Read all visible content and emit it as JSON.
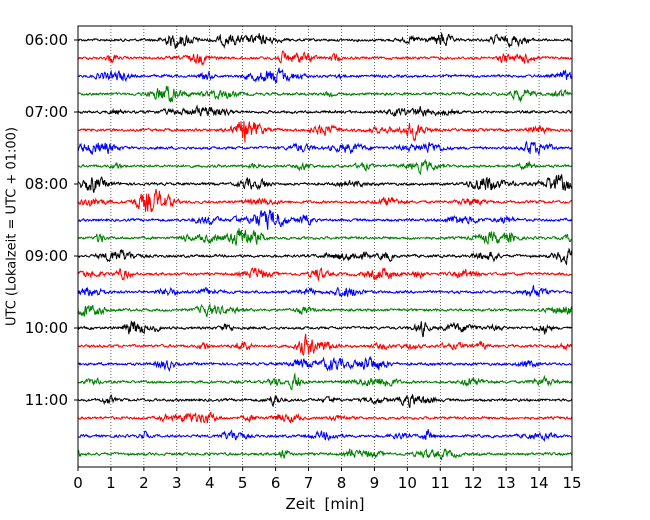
{
  "chart_data": {
    "type": "line",
    "title": "",
    "xlabel": "Zeit  [min]",
    "ylabel": "UTC (Lokalzeit = UTC + 01:00)",
    "xlim": [
      0,
      15
    ],
    "x_ticks": [
      0,
      1,
      2,
      3,
      4,
      5,
      6,
      7,
      8,
      9,
      10,
      11,
      12,
      13,
      14,
      15
    ],
    "x_tick_labels": [
      "0",
      "1",
      "2",
      "3",
      "4",
      "5",
      "6",
      "7",
      "8",
      "9",
      "10",
      "11",
      "12",
      "13",
      "14",
      "15"
    ],
    "y_tick_labels": [
      "06:00",
      "07:00",
      "08:00",
      "09:00",
      "10:00",
      "11:00"
    ],
    "start_time": "06:00",
    "trace_interval_minutes": 15,
    "trace_count": 24,
    "trace_duration_minutes": 15,
    "colors": [
      "#000000",
      "#ff0000",
      "#0000ff",
      "#008000"
    ],
    "grid": {
      "x": "dotted",
      "y": "none"
    },
    "legend": "none"
  }
}
